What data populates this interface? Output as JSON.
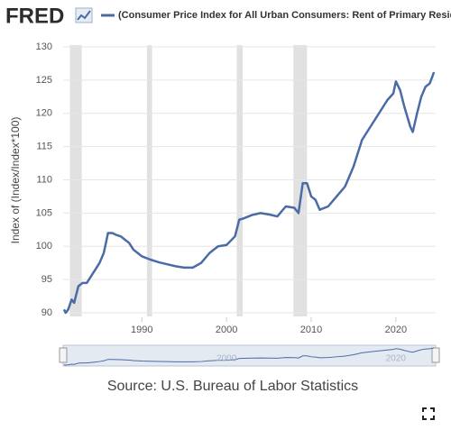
{
  "chart_data": {
    "type": "line",
    "logo": "FRED",
    "y_label": "Index of (Index/Index*100)",
    "source": "Source: U.S. Bureau of Labor Statistics",
    "x": [
      1980.8,
      1981,
      1981.3,
      1981.7,
      1982,
      1982.5,
      1983,
      1983.5,
      1984,
      1984.5,
      1985,
      1985.5,
      1986,
      1986.5,
      1987,
      1987.5,
      1988,
      1988.5,
      1989,
      1989.5,
      1990,
      1991,
      1992,
      1993,
      1994,
      1995,
      1996,
      1997,
      1998,
      1999,
      2000,
      2001,
      2001.5,
      2002,
      2003,
      2004,
      2005,
      2006,
      2007,
      2008,
      2008.5,
      2009,
      2009.5,
      2010,
      2010.5,
      2011,
      2012,
      2013,
      2014,
      2015,
      2016,
      2017,
      2018,
      2019,
      2019.7,
      2020,
      2020.5,
      2021,
      2021.7,
      2022,
      2022.5,
      2023,
      2023.5,
      2024,
      2024.5
    ],
    "series": [
      {
        "name": "(Consumer Price Index for All Urban Consumers: Rent of Primary Residence in U",
        "color": "#4b6ba6",
        "values": [
          90.5,
          90,
          90.5,
          92,
          91.5,
          94,
          94.5,
          94.5,
          95.5,
          96.5,
          97.5,
          99,
          102,
          102,
          101.7,
          101.5,
          101,
          100.5,
          99.5,
          99,
          98.5,
          98,
          97.6,
          97.3,
          97,
          96.8,
          96.8,
          97.5,
          99,
          100,
          100.2,
          101.5,
          104,
          104.2,
          104.7,
          105,
          104.8,
          104.5,
          106,
          105.8,
          105,
          109.5,
          109.5,
          107.5,
          107,
          105.5,
          106,
          107.5,
          109,
          112,
          116,
          118,
          120,
          122,
          123,
          124.8,
          123.5,
          121,
          118,
          117.2,
          120,
          122.5,
          124,
          124.5,
          126.2
        ]
      }
    ],
    "shading": [
      [
        1981.5,
        1982.9
      ],
      [
        1990.6,
        1991.2
      ],
      [
        2001.2,
        2001.9
      ],
      [
        2007.9,
        2009.5
      ]
    ],
    "xlim": [
      1980.7,
      2024.7
    ],
    "ylim": [
      90,
      130
    ],
    "xticks": [
      1990,
      2000,
      2010,
      2020
    ],
    "yticks": [
      90,
      95,
      100,
      105,
      110,
      115,
      120,
      125,
      130
    ],
    "navigator_xticks": [
      2000,
      2020
    ],
    "grid": true
  }
}
